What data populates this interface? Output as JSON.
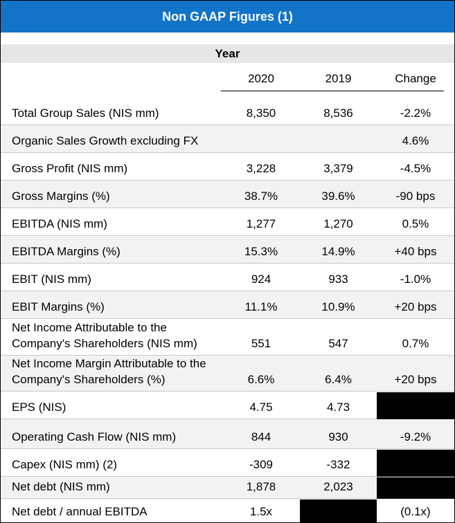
{
  "header": {
    "title": "Non GAAP Figures (1)",
    "group": "Year"
  },
  "table": {
    "columns": [
      "2020",
      "2019",
      "Change"
    ],
    "rows": [
      [
        "Total Group Sales (NIS mm)",
        "8,350",
        "8,536",
        "-2.2%"
      ],
      [
        "Organic Sales Growth excluding FX",
        null,
        null,
        "4.6%"
      ],
      [
        "Gross Profit (NIS mm)",
        "3,228",
        "3,379",
        "-4.5%"
      ],
      [
        "Gross Margins (%)",
        "38.7%",
        "39.6%",
        "-90 bps"
      ],
      [
        "EBITDA (NIS mm)",
        "1,277",
        "1,270",
        "0.5%"
      ],
      [
        "EBITDA Margins (%)",
        "15.3%",
        "14.9%",
        "+40 bps"
      ],
      [
        "EBIT (NIS mm)",
        "924",
        "933",
        "-1.0%"
      ],
      [
        "EBIT Margins (%)",
        "11.1%",
        "10.9%",
        "+20 bps"
      ],
      [
        "Net Income Attributable to the Company's Shareholders (NIS mm)",
        "551",
        "547",
        "0.7%"
      ],
      [
        "Net Income Margin Attributable to the Company's Shareholders (%)",
        "6.6%",
        "6.4%",
        "+20 bps"
      ],
      [
        "EPS (NIS)",
        "4.75",
        "4.73",
        null
      ],
      [
        "Operating Cash Flow (NIS mm)",
        "844",
        "930",
        "-9.2%"
      ],
      [
        "Capex (NIS mm) (2)",
        "-309",
        "-332",
        null
      ],
      [
        "Net debt (NIS mm)",
        "1,878",
        "2,023",
        null
      ],
      [
        "Net debt / annual EBITDA",
        "1.5x",
        null,
        "(0.1x)"
      ]
    ]
  }
}
